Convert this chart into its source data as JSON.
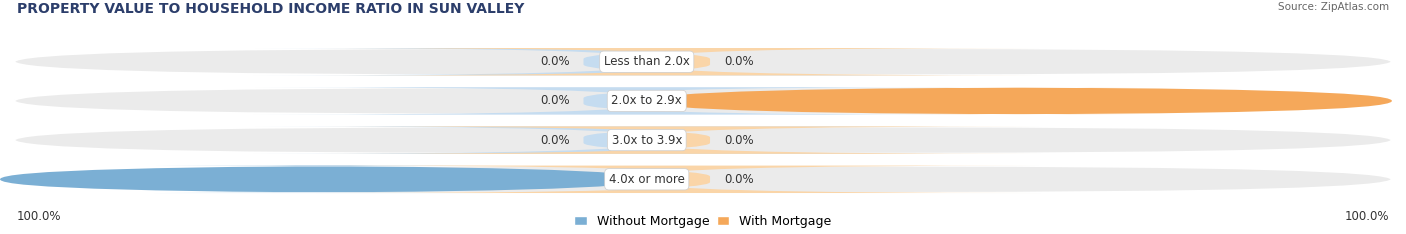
{
  "title": "PROPERTY VALUE TO HOUSEHOLD INCOME RATIO IN SUN VALLEY",
  "source": "Source: ZipAtlas.com",
  "categories": [
    "Less than 2.0x",
    "2.0x to 2.9x",
    "3.0x to 3.9x",
    "4.0x or more"
  ],
  "without_mortgage": [
    0.0,
    0.0,
    0.0,
    100.0
  ],
  "with_mortgage": [
    0.0,
    100.0,
    0.0,
    0.0
  ],
  "color_without": "#7BAFD4",
  "color_with": "#F5A85A",
  "color_without_light": "#C5DCF0",
  "color_with_light": "#FAD5A8",
  "bar_bg_color": "#EBEBEB",
  "title_color": "#2C3E6B",
  "title_fontsize": 10,
  "label_fontsize": 8.5,
  "source_fontsize": 7.5,
  "legend_fontsize": 9,
  "figsize": [
    14.06,
    2.34
  ],
  "dpi": 100
}
